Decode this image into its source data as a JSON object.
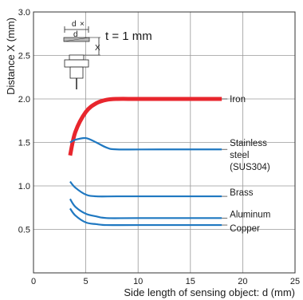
{
  "chart_data": {
    "type": "line",
    "title": "",
    "xlabel": "Side length of sensing object: d (mm)",
    "ylabel": "Distance X (mm)",
    "xlim": [
      0,
      25
    ],
    "ylim": [
      0,
      3.0
    ],
    "x_ticks": [
      "0",
      "5",
      "10",
      "15",
      "20",
      "25"
    ],
    "y_ticks": [
      "0.5",
      "1.0",
      "1.5",
      "2.0",
      "2.5",
      "3.0"
    ],
    "grid": true,
    "inset": {
      "annotation": "t = 1 mm",
      "labels": [
        "d",
        "d",
        "X"
      ]
    },
    "colors": {
      "iron": "#e8262d",
      "others": "#1f78c1"
    },
    "series": [
      {
        "name": "Iron",
        "color": "#e8262d",
        "points": [
          [
            3.5,
            1.35
          ],
          [
            4,
            1.62
          ],
          [
            5,
            1.85
          ],
          [
            6,
            1.95
          ],
          [
            7,
            1.99
          ],
          [
            8,
            2.0
          ],
          [
            10,
            2.0
          ],
          [
            14,
            2.0
          ],
          [
            18,
            2.0
          ]
        ]
      },
      {
        "name": [
          "Stainless",
          "steel",
          "(SUS304)"
        ],
        "color": "#1f78c1",
        "points": [
          [
            3.5,
            1.5
          ],
          [
            4,
            1.53
          ],
          [
            5,
            1.55
          ],
          [
            6,
            1.5
          ],
          [
            7,
            1.44
          ],
          [
            8,
            1.42
          ],
          [
            12,
            1.42
          ],
          [
            18,
            1.42
          ]
        ]
      },
      {
        "name": "Brass",
        "color": "#1f78c1",
        "points": [
          [
            3.5,
            1.05
          ],
          [
            4,
            0.98
          ],
          [
            5,
            0.9
          ],
          [
            6,
            0.88
          ],
          [
            8,
            0.88
          ],
          [
            12,
            0.88
          ],
          [
            18,
            0.88
          ]
        ]
      },
      {
        "name": "Aluminum",
        "color": "#1f78c1",
        "points": [
          [
            3.5,
            0.85
          ],
          [
            4,
            0.76
          ],
          [
            5,
            0.68
          ],
          [
            6,
            0.65
          ],
          [
            7,
            0.63
          ],
          [
            10,
            0.63
          ],
          [
            18,
            0.63
          ]
        ]
      },
      {
        "name": "Copper",
        "color": "#1f78c1",
        "points": [
          [
            3.5,
            0.74
          ],
          [
            4,
            0.66
          ],
          [
            5,
            0.58
          ],
          [
            6,
            0.56
          ],
          [
            7,
            0.55
          ],
          [
            10,
            0.55
          ],
          [
            18,
            0.55
          ]
        ]
      }
    ]
  }
}
